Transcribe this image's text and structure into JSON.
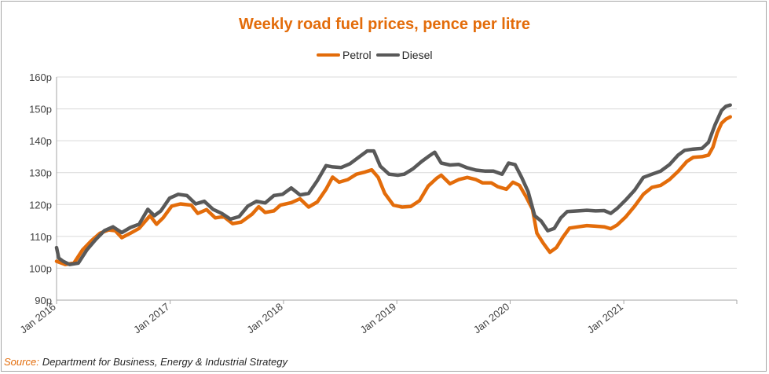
{
  "chart_data": {
    "type": "line",
    "title": "Weekly road fuel prices, pence per litre",
    "xlabel": "",
    "ylabel": "",
    "ylim": [
      90,
      160
    ],
    "xlim": [
      "2016-01-01",
      "2021-12-31"
    ],
    "yticks": [
      "90p",
      "100p",
      "110p",
      "120p",
      "130p",
      "140p",
      "150p",
      "160p"
    ],
    "xticks": [
      "Jan 2016",
      "Jan 2017",
      "Jan 2018",
      "Jan 2019",
      "Jan 2020",
      "Jan 2021"
    ],
    "legend_position": "top-center",
    "grid": "horizontal",
    "series": [
      {
        "name": "Petrol",
        "color": "#e36c0a",
        "points": [
          [
            "2016-01-01",
            102.2
          ],
          [
            "2016-01-29",
            101.2
          ],
          [
            "2016-02-26",
            101.6
          ],
          [
            "2016-03-25",
            105.8
          ],
          [
            "2016-04-22",
            108.6
          ],
          [
            "2016-05-20",
            111.0
          ],
          [
            "2016-06-17",
            112.0
          ],
          [
            "2016-07-08",
            111.8
          ],
          [
            "2016-07-29",
            109.6
          ],
          [
            "2016-08-26",
            111.0
          ],
          [
            "2016-09-23",
            112.5
          ],
          [
            "2016-10-28",
            116.5
          ],
          [
            "2016-11-18",
            113.8
          ],
          [
            "2016-12-09",
            115.8
          ],
          [
            "2017-01-06",
            119.5
          ],
          [
            "2017-02-03",
            120.2
          ],
          [
            "2017-03-10",
            119.8
          ],
          [
            "2017-03-31",
            117.2
          ],
          [
            "2017-04-28",
            118.4
          ],
          [
            "2017-05-26",
            115.8
          ],
          [
            "2017-06-23",
            116.2
          ],
          [
            "2017-07-21",
            114.0
          ],
          [
            "2017-08-18",
            114.5
          ],
          [
            "2017-09-22",
            117.0
          ],
          [
            "2017-10-13",
            119.3
          ],
          [
            "2017-11-03",
            117.5
          ],
          [
            "2017-12-01",
            118.0
          ],
          [
            "2017-12-22",
            119.8
          ],
          [
            "2018-01-26",
            120.6
          ],
          [
            "2018-02-23",
            121.8
          ],
          [
            "2018-03-23",
            119.2
          ],
          [
            "2018-04-20",
            120.8
          ],
          [
            "2018-05-18",
            124.8
          ],
          [
            "2018-06-08",
            128.6
          ],
          [
            "2018-06-29",
            127.0
          ],
          [
            "2018-07-27",
            127.8
          ],
          [
            "2018-08-24",
            129.5
          ],
          [
            "2018-09-21",
            130.2
          ],
          [
            "2018-10-12",
            130.9
          ],
          [
            "2018-11-02",
            128.5
          ],
          [
            "2018-11-23",
            123.5
          ],
          [
            "2018-12-21",
            119.8
          ],
          [
            "2019-01-18",
            119.2
          ],
          [
            "2019-02-15",
            119.4
          ],
          [
            "2019-03-15",
            121.2
          ],
          [
            "2019-04-12",
            125.8
          ],
          [
            "2019-05-10",
            128.3
          ],
          [
            "2019-05-24",
            129.2
          ],
          [
            "2019-06-21",
            126.5
          ],
          [
            "2019-07-19",
            127.8
          ],
          [
            "2019-08-16",
            128.5
          ],
          [
            "2019-09-13",
            127.8
          ],
          [
            "2019-10-04",
            126.8
          ],
          [
            "2019-11-01",
            126.8
          ],
          [
            "2019-11-22",
            125.6
          ],
          [
            "2019-12-20",
            124.8
          ],
          [
            "2020-01-10",
            127.0
          ],
          [
            "2020-01-31",
            126.0
          ],
          [
            "2020-02-21",
            122.5
          ],
          [
            "2020-03-13",
            118.5
          ],
          [
            "2020-03-27",
            111.0
          ],
          [
            "2020-04-17",
            107.8
          ],
          [
            "2020-05-08",
            105.0
          ],
          [
            "2020-05-29",
            106.5
          ],
          [
            "2020-06-19",
            109.8
          ],
          [
            "2020-07-10",
            112.6
          ],
          [
            "2020-08-07",
            113.0
          ],
          [
            "2020-09-04",
            113.4
          ],
          [
            "2020-10-02",
            113.2
          ],
          [
            "2020-10-30",
            113.0
          ],
          [
            "2020-11-20",
            112.4
          ],
          [
            "2020-12-11",
            113.6
          ],
          [
            "2021-01-08",
            116.2
          ],
          [
            "2021-02-05",
            119.5
          ],
          [
            "2021-03-05",
            123.2
          ],
          [
            "2021-04-02",
            125.4
          ],
          [
            "2021-04-30",
            126.0
          ],
          [
            "2021-05-28",
            127.8
          ],
          [
            "2021-06-25",
            130.4
          ],
          [
            "2021-07-23",
            133.5
          ],
          [
            "2021-08-13",
            134.8
          ],
          [
            "2021-09-10",
            135.0
          ],
          [
            "2021-10-01",
            135.5
          ],
          [
            "2021-10-15",
            138.0
          ],
          [
            "2021-10-29",
            142.5
          ],
          [
            "2021-11-12",
            145.5
          ],
          [
            "2021-11-26",
            146.8
          ],
          [
            "2021-12-10",
            147.5
          ]
        ]
      },
      {
        "name": "Diesel",
        "color": "#595959",
        "points": [
          [
            "2016-01-01",
            106.5
          ],
          [
            "2016-01-08",
            103.2
          ],
          [
            "2016-01-22",
            102.2
          ],
          [
            "2016-02-12",
            101.2
          ],
          [
            "2016-03-11",
            101.6
          ],
          [
            "2016-04-08",
            105.8
          ],
          [
            "2016-05-06",
            109.0
          ],
          [
            "2016-06-03",
            111.8
          ],
          [
            "2016-07-01",
            113.0
          ],
          [
            "2016-07-29",
            111.2
          ],
          [
            "2016-08-26",
            112.8
          ],
          [
            "2016-09-23",
            113.8
          ],
          [
            "2016-10-21",
            118.5
          ],
          [
            "2016-11-11",
            116.5
          ],
          [
            "2016-12-02",
            118.0
          ],
          [
            "2016-12-30",
            122.0
          ],
          [
            "2017-01-27",
            123.2
          ],
          [
            "2017-02-24",
            122.8
          ],
          [
            "2017-03-24",
            120.2
          ],
          [
            "2017-04-21",
            121.0
          ],
          [
            "2017-05-19",
            118.5
          ],
          [
            "2017-06-16",
            117.2
          ],
          [
            "2017-07-14",
            115.4
          ],
          [
            "2017-08-11",
            116.2
          ],
          [
            "2017-09-08",
            119.5
          ],
          [
            "2017-10-06",
            121.0
          ],
          [
            "2017-11-03",
            120.5
          ],
          [
            "2017-12-01",
            122.8
          ],
          [
            "2017-12-29",
            123.2
          ],
          [
            "2018-01-26",
            125.2
          ],
          [
            "2018-02-23",
            123.0
          ],
          [
            "2018-03-23",
            123.5
          ],
          [
            "2018-04-20",
            127.5
          ],
          [
            "2018-05-18",
            132.2
          ],
          [
            "2018-06-08",
            131.8
          ],
          [
            "2018-07-06",
            131.6
          ],
          [
            "2018-08-03",
            132.8
          ],
          [
            "2018-08-31",
            134.8
          ],
          [
            "2018-09-28",
            136.8
          ],
          [
            "2018-10-19",
            136.8
          ],
          [
            "2018-11-09",
            132.0
          ],
          [
            "2018-12-07",
            129.5
          ],
          [
            "2019-01-04",
            129.2
          ],
          [
            "2019-01-25",
            129.5
          ],
          [
            "2019-02-22",
            131.2
          ],
          [
            "2019-03-22",
            133.5
          ],
          [
            "2019-04-12",
            135.0
          ],
          [
            "2019-05-03",
            136.4
          ],
          [
            "2019-05-24",
            133.0
          ],
          [
            "2019-06-21",
            132.4
          ],
          [
            "2019-07-19",
            132.6
          ],
          [
            "2019-08-16",
            131.5
          ],
          [
            "2019-09-13",
            130.8
          ],
          [
            "2019-10-11",
            130.5
          ],
          [
            "2019-11-08",
            130.5
          ],
          [
            "2019-12-06",
            129.5
          ],
          [
            "2019-12-27",
            133.0
          ],
          [
            "2020-01-17",
            132.5
          ],
          [
            "2020-02-07",
            128.5
          ],
          [
            "2020-02-28",
            124.0
          ],
          [
            "2020-03-20",
            116.5
          ],
          [
            "2020-04-10",
            114.8
          ],
          [
            "2020-05-01",
            111.8
          ],
          [
            "2020-05-22",
            112.5
          ],
          [
            "2020-06-12",
            115.8
          ],
          [
            "2020-07-03",
            117.8
          ],
          [
            "2020-08-07",
            118.0
          ],
          [
            "2020-09-04",
            118.2
          ],
          [
            "2020-10-02",
            118.0
          ],
          [
            "2020-10-30",
            118.1
          ],
          [
            "2020-11-20",
            117.2
          ],
          [
            "2020-12-11",
            118.8
          ],
          [
            "2021-01-08",
            121.5
          ],
          [
            "2021-02-05",
            124.5
          ],
          [
            "2021-03-05",
            128.5
          ],
          [
            "2021-04-02",
            129.5
          ],
          [
            "2021-04-30",
            130.5
          ],
          [
            "2021-05-28",
            132.5
          ],
          [
            "2021-06-25",
            135.5
          ],
          [
            "2021-07-16",
            137.0
          ],
          [
            "2021-08-13",
            137.4
          ],
          [
            "2021-09-10",
            137.6
          ],
          [
            "2021-10-01",
            139.5
          ],
          [
            "2021-10-22",
            145.0
          ],
          [
            "2021-11-12",
            149.5
          ],
          [
            "2021-11-26",
            150.8
          ],
          [
            "2021-12-10",
            151.2
          ]
        ]
      }
    ]
  },
  "source": {
    "label": "Source:",
    "text": "Department for Business, Energy & Industrial Strategy"
  }
}
